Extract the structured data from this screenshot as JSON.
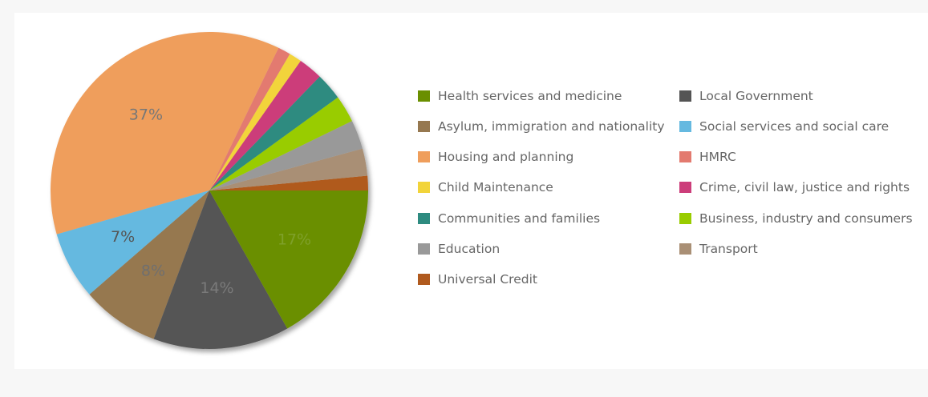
{
  "chart_data": {
    "type": "pie",
    "title": "",
    "legend_position": "right",
    "start_angle_deg": 90,
    "direction": "clockwise",
    "slices": [
      {
        "label": "Universal Credit",
        "value": 1.5,
        "color": "#b05a1e",
        "show_label": false
      },
      {
        "label": "Transport",
        "value": 2.8,
        "color": "#a98f75",
        "show_label": false
      },
      {
        "label": "Education",
        "value": 3.0,
        "color": "#999999",
        "show_label": false
      },
      {
        "label": "Business, industry and consumers",
        "value": 2.8,
        "color": "#99cc00",
        "show_label": false
      },
      {
        "label": "Communities and families",
        "value": 2.8,
        "color": "#2e8b80",
        "show_label": false
      },
      {
        "label": "Crime, civil law, justice and rights",
        "value": 2.5,
        "color": "#cc3d7a",
        "show_label": false
      },
      {
        "label": "Child Maintenance",
        "value": 1.3,
        "color": "#f2d43a",
        "show_label": false
      },
      {
        "label": "HMRC",
        "value": 1.3,
        "color": "#e37a6f",
        "show_label": false
      },
      {
        "label": "Housing and planning",
        "value": 37,
        "color": "#ef9e5c",
        "show_label": true,
        "text": "37%",
        "text_color": "#777777"
      },
      {
        "label": "Social services and social care",
        "value": 7,
        "color": "#65b9e0",
        "show_label": true,
        "text": "7%",
        "text_color": "#555555"
      },
      {
        "label": "Asylum, immigration and nationality",
        "value": 8,
        "color": "#967850",
        "show_label": true,
        "text": "8%",
        "text_color": "#6f6f6f"
      },
      {
        "label": "Local Government",
        "value": 14,
        "color": "#545454",
        "show_label": true,
        "text": "14%",
        "text_color": "#7a7a7a"
      },
      {
        "label": "Health services and medicine",
        "value": 17,
        "color": "#6a8f00",
        "show_label": true,
        "text": "17%",
        "text_color": "#7fa02a"
      }
    ]
  },
  "legend": {
    "items": [
      {
        "label": "Health services and medicine",
        "color": "#6a8f00"
      },
      {
        "label": "Local Government",
        "color": "#545454"
      },
      {
        "label": "Asylum, immigration and nationality",
        "color": "#967850"
      },
      {
        "label": "Social services and social care",
        "color": "#65b9e0"
      },
      {
        "label": "Housing and planning",
        "color": "#ef9e5c"
      },
      {
        "label": "HMRC",
        "color": "#e37a6f"
      },
      {
        "label": "Child Maintenance",
        "color": "#f2d43a"
      },
      {
        "label": "Crime, civil law, justice and rights",
        "color": "#cc3d7a"
      },
      {
        "label": "Communities and families",
        "color": "#2e8b80"
      },
      {
        "label": "Business, industry and consumers",
        "color": "#99cc00"
      },
      {
        "label": "Education",
        "color": "#999999"
      },
      {
        "label": "Transport",
        "color": "#a98f75"
      },
      {
        "label": "Universal Credit",
        "color": "#b05a1e"
      }
    ]
  }
}
